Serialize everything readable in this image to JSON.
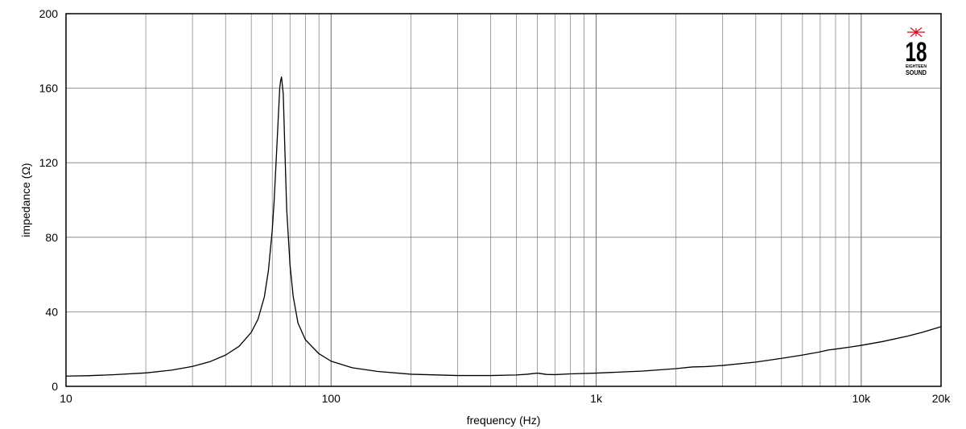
{
  "chart_data": {
    "type": "line",
    "title": "",
    "xlabel": "frequency (Hz)",
    "ylabel": "impedance (Ω)",
    "x_scale": "log",
    "xlim": [
      10,
      20000
    ],
    "ylim": [
      0,
      200
    ],
    "grid": true,
    "legend": "none",
    "x_ticks": [
      {
        "value": 10,
        "label": "10"
      },
      {
        "value": 100,
        "label": "100"
      },
      {
        "value": 1000,
        "label": "1k"
      },
      {
        "value": 10000,
        "label": "10k"
      },
      {
        "value": 20000,
        "label": "20k"
      }
    ],
    "y_ticks": [
      {
        "value": 0,
        "label": "0"
      },
      {
        "value": 40,
        "label": "40"
      },
      {
        "value": 80,
        "label": "80"
      },
      {
        "value": 120,
        "label": "120"
      },
      {
        "value": 160,
        "label": "160"
      },
      {
        "value": 200,
        "label": "200"
      }
    ],
    "x_minor_gridlines": [
      20,
      30,
      40,
      50,
      60,
      70,
      80,
      90,
      200,
      300,
      400,
      500,
      600,
      700,
      800,
      900,
      2000,
      3000,
      4000,
      5000,
      6000,
      7000,
      8000,
      9000
    ],
    "series": [
      {
        "color": "#000000",
        "x": [
          10,
          12,
          15,
          20,
          25,
          30,
          35,
          40,
          45,
          50,
          53,
          56,
          58,
          60,
          61,
          62,
          63,
          64,
          64.5,
          65,
          66,
          67,
          68,
          70,
          72,
          75,
          80,
          90,
          100,
          120,
          150,
          200,
          300,
          400,
          500,
          550,
          600,
          650,
          700,
          800,
          1000,
          1500,
          2000,
          2300,
          2600,
          3000,
          4000,
          5000,
          6000,
          7000,
          7500,
          8000,
          9000,
          10000,
          12000,
          15000,
          17000,
          20000
        ],
        "y": [
          5.5,
          5.7,
          6.2,
          7.2,
          8.7,
          10.7,
          13.3,
          16.8,
          21.5,
          29,
          36,
          48,
          62,
          84,
          100,
          120,
          140,
          160,
          164,
          166,
          157,
          125,
          95,
          65,
          48,
          34,
          25,
          17.5,
          13.5,
          10,
          8,
          6.5,
          5.8,
          5.8,
          6.1,
          6.5,
          7.1,
          6.4,
          6.3,
          6.7,
          7.1,
          8.2,
          9.5,
          10.4,
          10.6,
          11.2,
          13,
          15,
          16.8,
          18.5,
          19.5,
          20,
          21,
          22,
          24,
          27,
          29,
          32
        ]
      }
    ]
  },
  "logo": {
    "mark": "18",
    "line1": "EIGHTEEN",
    "line2": "SOUND",
    "star_color": "#e0001b",
    "icon": "eighteen-sound-logo"
  }
}
